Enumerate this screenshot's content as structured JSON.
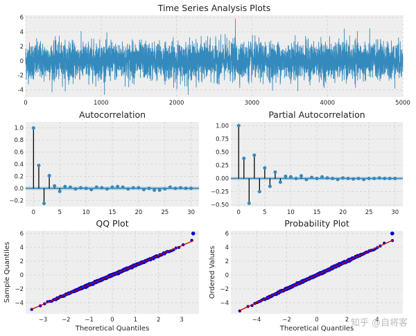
{
  "watermark": "知乎 @自将客",
  "colors": {
    "series": "#348abd",
    "qq_points": "#0000cc",
    "qq_line": "#cc0000",
    "panel_bg": "#eeeeee",
    "grid": "#cfcfcf"
  },
  "chart_data": [
    {
      "id": "ts",
      "type": "line",
      "title": "Time Series Analysis Plots",
      "xlabel": "",
      "ylabel": "",
      "xlim": [
        0,
        5000
      ],
      "ylim": [
        -5,
        6.3
      ],
      "xticks": [
        0,
        1000,
        2000,
        3000,
        4000,
        5000
      ],
      "yticks": [
        -4,
        -2,
        0,
        2,
        4,
        6
      ],
      "grid": true,
      "n_points": 5000
    },
    {
      "id": "acf",
      "type": "bar",
      "title": "Autocorrelation",
      "xlabel": "",
      "ylabel": "",
      "xlim": [
        -1.5,
        31.5
      ],
      "ylim": [
        -0.3,
        1.1
      ],
      "xticks": [
        0,
        5,
        10,
        15,
        20,
        25,
        30
      ],
      "yticks": [
        -0.2,
        0.0,
        0.2,
        0.4,
        0.6,
        0.8,
        1.0
      ],
      "ytick_labels": [
        "−0.2",
        "0.0",
        "0.2",
        "0.4",
        "0.6",
        "0.8",
        "1.0"
      ],
      "grid": true,
      "x": [
        0,
        1,
        2,
        3,
        4,
        5,
        6,
        7,
        8,
        9,
        10,
        11,
        12,
        13,
        14,
        15,
        16,
        17,
        18,
        19,
        20,
        21,
        22,
        23,
        24,
        25,
        26,
        27,
        28,
        29,
        30
      ],
      "values": [
        1.0,
        0.38,
        -0.25,
        0.21,
        0.04,
        -0.05,
        0.03,
        0.02,
        -0.01,
        0.01,
        0.0,
        -0.02,
        0.02,
        0.01,
        -0.01,
        0.02,
        0.03,
        0.02,
        -0.01,
        0.01,
        0.01,
        -0.02,
        0.0,
        -0.03,
        -0.03,
        -0.01,
        0.02,
        0.0,
        0.01,
        0.0,
        0.0
      ],
      "confidence": 0.03
    },
    {
      "id": "pacf",
      "type": "bar",
      "title": "Partial Autocorrelation",
      "xlabel": "",
      "ylabel": "",
      "xlim": [
        -1.5,
        31.5
      ],
      "ylim": [
        -0.53,
        1.07
      ],
      "xticks": [
        0,
        5,
        10,
        15,
        20,
        25,
        30
      ],
      "yticks": [
        -0.5,
        -0.25,
        0.0,
        0.25,
        0.5,
        0.75,
        1.0
      ],
      "ytick_labels": [
        "−0.50",
        "−0.25",
        "0.00",
        "0.25",
        "0.50",
        "0.75",
        "1.00"
      ],
      "grid": true,
      "x": [
        0,
        1,
        2,
        3,
        4,
        5,
        6,
        7,
        8,
        9,
        10,
        11,
        12,
        13,
        14,
        15,
        16,
        17,
        18,
        19,
        20,
        21,
        22,
        23,
        24,
        25,
        26,
        27,
        28,
        29,
        30
      ],
      "values": [
        1.0,
        0.38,
        -0.47,
        0.44,
        -0.25,
        0.2,
        -0.15,
        0.12,
        -0.07,
        0.04,
        0.03,
        0.0,
        0.05,
        -0.02,
        0.02,
        0.0,
        0.03,
        0.01,
        0.0,
        -0.02,
        0.01,
        0.0,
        -0.01,
        0.0,
        -0.02,
        0.0,
        0.0,
        0.01,
        0.0,
        0.0,
        0.0
      ],
      "confidence": 0.03
    },
    {
      "id": "qq",
      "type": "scatter",
      "title": "QQ Plot",
      "xlabel": "Theoretical Quantiles",
      "ylabel": "Sample Quantiles",
      "xlim": [
        -3.75,
        3.75
      ],
      "ylim": [
        -5.6,
        6.4
      ],
      "xticks": [
        -3,
        -2,
        -1,
        0,
        1,
        2,
        3
      ],
      "xtick_labels": [
        "−3",
        "−2",
        "−1",
        "0",
        "1",
        "2",
        "3"
      ],
      "yticks": [
        -4,
        -2,
        0,
        2,
        4,
        6
      ],
      "ytick_labels": [
        "−4",
        "−2",
        "0",
        "2",
        "4",
        "6"
      ],
      "grid": true,
      "ref_line": {
        "x": [
          -3.5,
          3.5
        ],
        "y": [
          -4.95,
          4.95
        ]
      },
      "x_range": [
        -3.55,
        3.5
      ],
      "slope": 1.41,
      "outlier": {
        "x": 3.5,
        "y": 6.0
      },
      "n_points": 600
    },
    {
      "id": "prob",
      "type": "scatter",
      "title": "Probability Plot",
      "xlabel": "Theoretical Quantiles",
      "ylabel": "Ordered Values",
      "xlim": [
        -5.7,
        5.7
      ],
      "ylim": [
        -5.6,
        6.4
      ],
      "xticks": [
        -4,
        -2,
        0,
        2,
        4
      ],
      "xtick_labels": [
        "−4",
        "−2",
        "0",
        "2",
        "4"
      ],
      "yticks": [
        -4,
        -2,
        0,
        2,
        4,
        6
      ],
      "ytick_labels": [
        "−4",
        "−2",
        "0",
        "2",
        "4",
        "6"
      ],
      "grid": true,
      "ref_line": {
        "x": [
          -5.1,
          5.1
        ],
        "y": [
          -5.1,
          5.1
        ]
      },
      "x_range": [
        -5.2,
        5.1
      ],
      "slope": 1.0,
      "outlier": {
        "x": 5.0,
        "y": 6.0
      },
      "n_points": 600
    }
  ]
}
